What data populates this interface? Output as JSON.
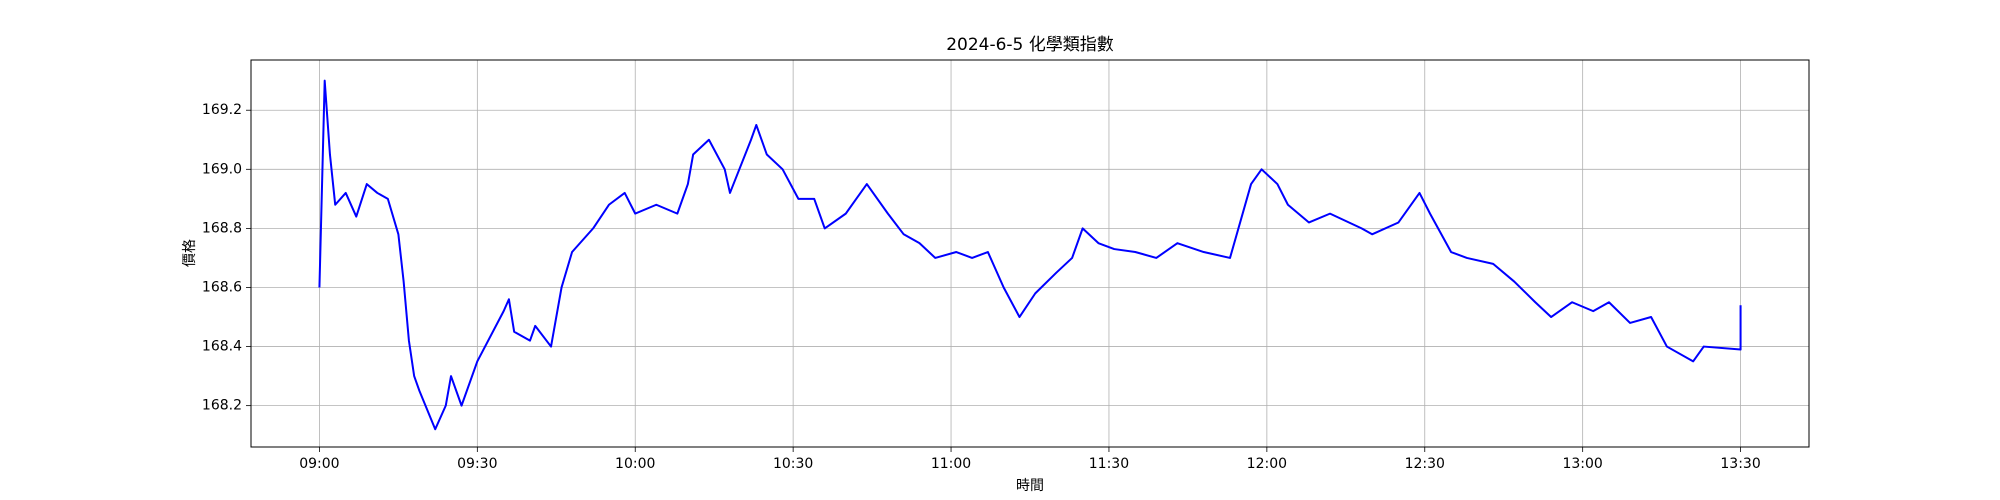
{
  "chart_data": {
    "type": "line",
    "title": "2024-6-5 化學類指數",
    "x_label": "時間",
    "y_label": "價格",
    "color": "#0000ff",
    "grid": true,
    "x": [
      "09:00",
      "09:01",
      "09:02",
      "09:03",
      "09:05",
      "09:07",
      "09:09",
      "09:11",
      "09:13",
      "09:15",
      "09:16",
      "09:17",
      "09:18",
      "09:19",
      "09:22",
      "09:24",
      "09:25",
      "09:27",
      "09:30",
      "09:35",
      "09:36",
      "09:37",
      "09:40",
      "09:41",
      "09:44",
      "09:46",
      "09:48",
      "09:52",
      "09:55",
      "09:58",
      "10:00",
      "10:04",
      "10:08",
      "10:10",
      "10:11",
      "10:14",
      "10:17",
      "10:18",
      "10:22",
      "10:23",
      "10:25",
      "10:28",
      "10:31",
      "10:34",
      "10:36",
      "10:40",
      "10:42",
      "10:44",
      "10:48",
      "10:51",
      "10:54",
      "10:57",
      "11:01",
      "11:04",
      "11:07",
      "11:10",
      "11:13",
      "11:16",
      "11:20",
      "11:23",
      "11:25",
      "11:28",
      "11:31",
      "11:35",
      "11:39",
      "11:43",
      "11:48",
      "11:53",
      "11:57",
      "11:59",
      "12:02",
      "12:04",
      "12:08",
      "12:12",
      "12:18",
      "12:20",
      "12:25",
      "12:29",
      "12:31",
      "12:35",
      "12:38",
      "12:43",
      "12:47",
      "12:51",
      "12:54",
      "12:58",
      "13:02",
      "13:05",
      "13:09",
      "13:13",
      "13:16",
      "13:21",
      "13:23",
      "13:30",
      "13:30"
    ],
    "values": [
      168.6,
      169.3,
      169.05,
      168.88,
      168.92,
      168.84,
      168.95,
      168.92,
      168.9,
      168.78,
      168.62,
      168.42,
      168.3,
      168.25,
      168.12,
      168.2,
      168.3,
      168.2,
      168.35,
      168.52,
      168.56,
      168.45,
      168.42,
      168.47,
      168.4,
      168.6,
      168.72,
      168.8,
      168.88,
      168.92,
      168.85,
      168.88,
      168.85,
      168.95,
      169.05,
      169.1,
      169.0,
      168.92,
      169.1,
      169.15,
      169.05,
      169.0,
      168.9,
      168.9,
      168.8,
      168.85,
      168.9,
      168.95,
      168.85,
      168.78,
      168.75,
      168.7,
      168.72,
      168.7,
      168.72,
      168.6,
      168.5,
      168.58,
      168.65,
      168.7,
      168.8,
      168.75,
      168.73,
      168.72,
      168.7,
      168.75,
      168.72,
      168.7,
      168.95,
      169.0,
      168.95,
      168.88,
      168.82,
      168.85,
      168.8,
      168.78,
      168.82,
      168.92,
      168.85,
      168.72,
      168.7,
      168.68,
      168.62,
      168.55,
      168.5,
      168.55,
      168.52,
      168.55,
      168.48,
      168.5,
      168.4,
      168.35,
      168.4,
      168.39,
      168.54
    ],
    "xlim": [
      "08:47",
      "13:43"
    ],
    "xticks": [
      "09:00",
      "09:30",
      "10:00",
      "10:30",
      "11:00",
      "11:30",
      "12:00",
      "12:30",
      "13:00",
      "13:30"
    ],
    "ylim": [
      168.06,
      169.37
    ],
    "yticks": [
      168.2,
      168.4,
      168.6,
      168.8,
      {
        "value": 169,
        "label": "169.0"
      },
      169.2
    ]
  }
}
